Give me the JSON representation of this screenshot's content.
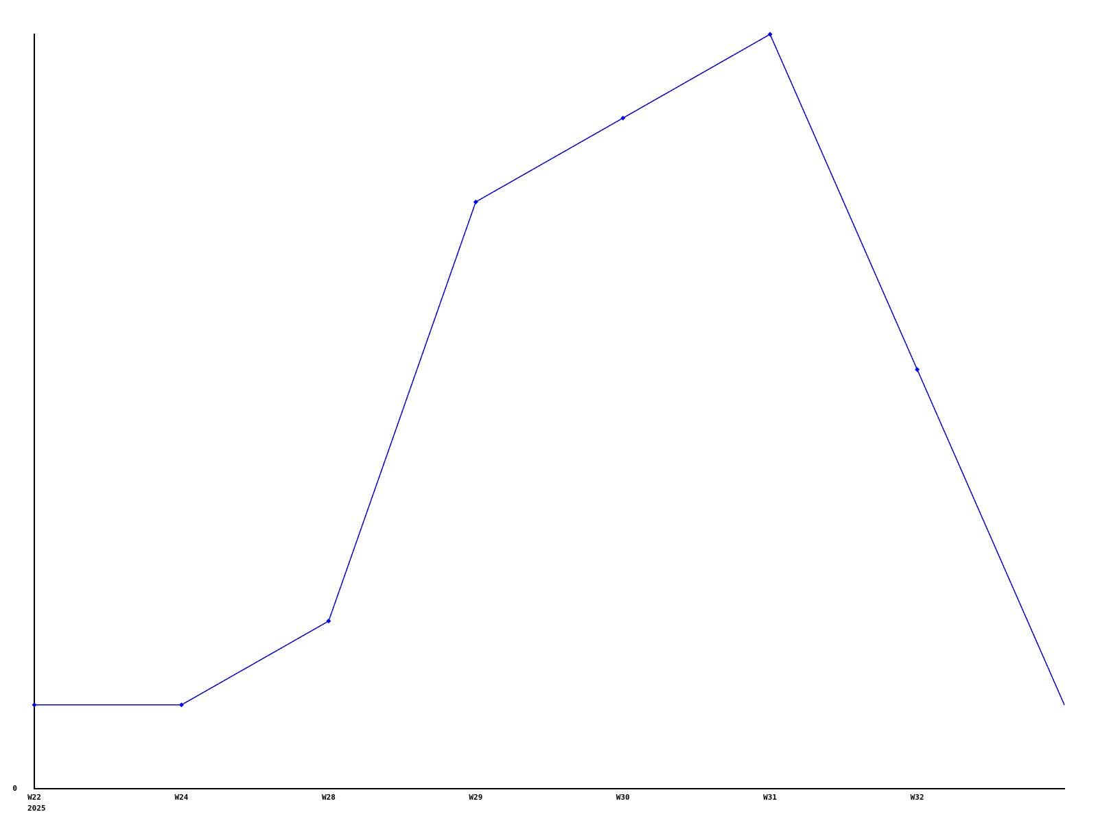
{
  "chart_data": {
    "type": "line",
    "categories": [
      "W22",
      "W24",
      "W28",
      "W29",
      "W30",
      "W31",
      "W32",
      ""
    ],
    "values": [
      1,
      1,
      2,
      7,
      8,
      9,
      5,
      1
    ],
    "marker_indices": [
      0,
      1,
      2,
      3,
      4,
      5,
      6
    ],
    "x_tick_labels": [
      "W22",
      "W24",
      "W28",
      "W29",
      "W30",
      "W31",
      "W32"
    ],
    "year_label": "2025",
    "y_tick_labels": [
      "0"
    ],
    "ylim": [
      0,
      9
    ],
    "title": "",
    "xlabel": "",
    "ylabel": "",
    "grid": false,
    "legend": "none",
    "line_color": "#0000ff",
    "marker_color": "#0000ff",
    "marker_shape": "diamond",
    "axis_color": "#000000",
    "background_color": "#ffffff"
  }
}
